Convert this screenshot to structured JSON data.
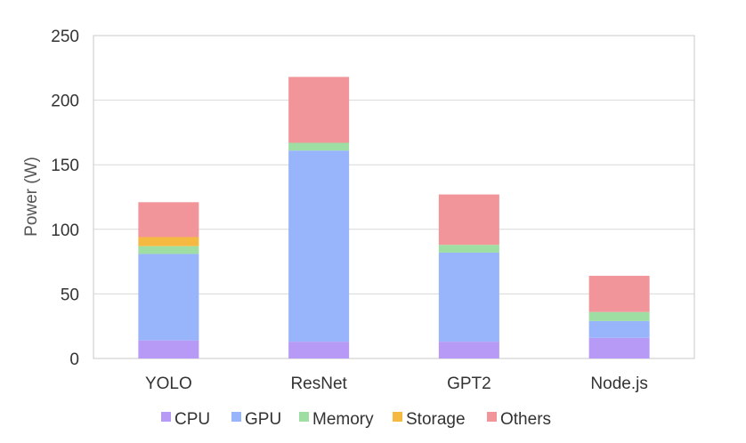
{
  "chart_data": {
    "type": "bar",
    "stacked": true,
    "title": "",
    "xlabel": "",
    "ylabel": "Power (W)",
    "ylim": [
      0,
      250
    ],
    "yticks": [
      0,
      50,
      100,
      150,
      200,
      250
    ],
    "grid": true,
    "legend_position": "bottom",
    "categories": [
      "YOLO",
      "ResNet",
      "GPT2",
      "Node.js"
    ],
    "series": [
      {
        "name": "CPU",
        "color": "#B79AF5",
        "values": [
          14,
          13,
          13,
          16
        ]
      },
      {
        "name": "GPU",
        "color": "#98B4FA",
        "values": [
          67,
          148,
          69,
          13
        ]
      },
      {
        "name": "Memory",
        "color": "#9EDEA2",
        "values": [
          6,
          6,
          6,
          7
        ]
      },
      {
        "name": "Storage",
        "color": "#F5B942",
        "values": [
          7,
          0,
          0,
          0
        ]
      },
      {
        "name": "Others",
        "color": "#F2959A",
        "values": [
          27,
          51,
          39,
          28
        ]
      }
    ]
  }
}
